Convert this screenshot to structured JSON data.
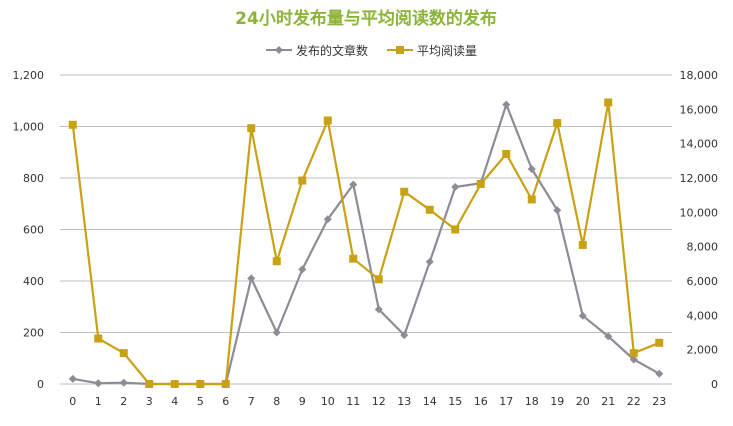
{
  "chart_data": {
    "type": "line",
    "title": "24小时发布量与平均阅读数的发布",
    "title_color": "#8db33a",
    "categories": [
      "0",
      "1",
      "2",
      "3",
      "4",
      "5",
      "6",
      "7",
      "8",
      "9",
      "10",
      "11",
      "12",
      "13",
      "14",
      "15",
      "16",
      "17",
      "18",
      "19",
      "20",
      "21",
      "22",
      "23"
    ],
    "series": [
      {
        "name": "发布的文章数",
        "axis": "left",
        "color": "#8c8c96",
        "marker": "diamond",
        "values": [
          20,
          3,
          5,
          0,
          0,
          0,
          0,
          410,
          200,
          445,
          640,
          775,
          290,
          190,
          475,
          765,
          780,
          1085,
          835,
          675,
          265,
          185,
          95,
          40
        ]
      },
      {
        "name": "平均阅读量",
        "axis": "right",
        "color": "#c8a214",
        "marker": "square",
        "values": [
          15100,
          2650,
          1800,
          0,
          0,
          0,
          0,
          14900,
          7150,
          11850,
          15350,
          7300,
          6100,
          11200,
          10150,
          9000,
          11650,
          13400,
          10750,
          15200,
          8100,
          16400,
          1800,
          2400
        ]
      }
    ],
    "y_left": {
      "ylim": [
        0,
        1200
      ],
      "ticks": [
        0,
        200,
        400,
        600,
        800,
        1000,
        1200
      ],
      "tick_labels": [
        "0",
        "200",
        "400",
        "600",
        "800",
        "1,000",
        "1,200"
      ]
    },
    "y_right": {
      "ylim": [
        0,
        18000
      ],
      "ticks": [
        0,
        2000,
        4000,
        6000,
        8000,
        10000,
        12000,
        14000,
        16000,
        18000
      ],
      "tick_labels": [
        "0",
        "2,000",
        "4,000",
        "6,000",
        "8,000",
        "10,000",
        "12,000",
        "14,000",
        "16,000",
        "18,000"
      ]
    },
    "grid": true,
    "grid_color": "#bfbfbf",
    "legend_position": "top-center"
  }
}
